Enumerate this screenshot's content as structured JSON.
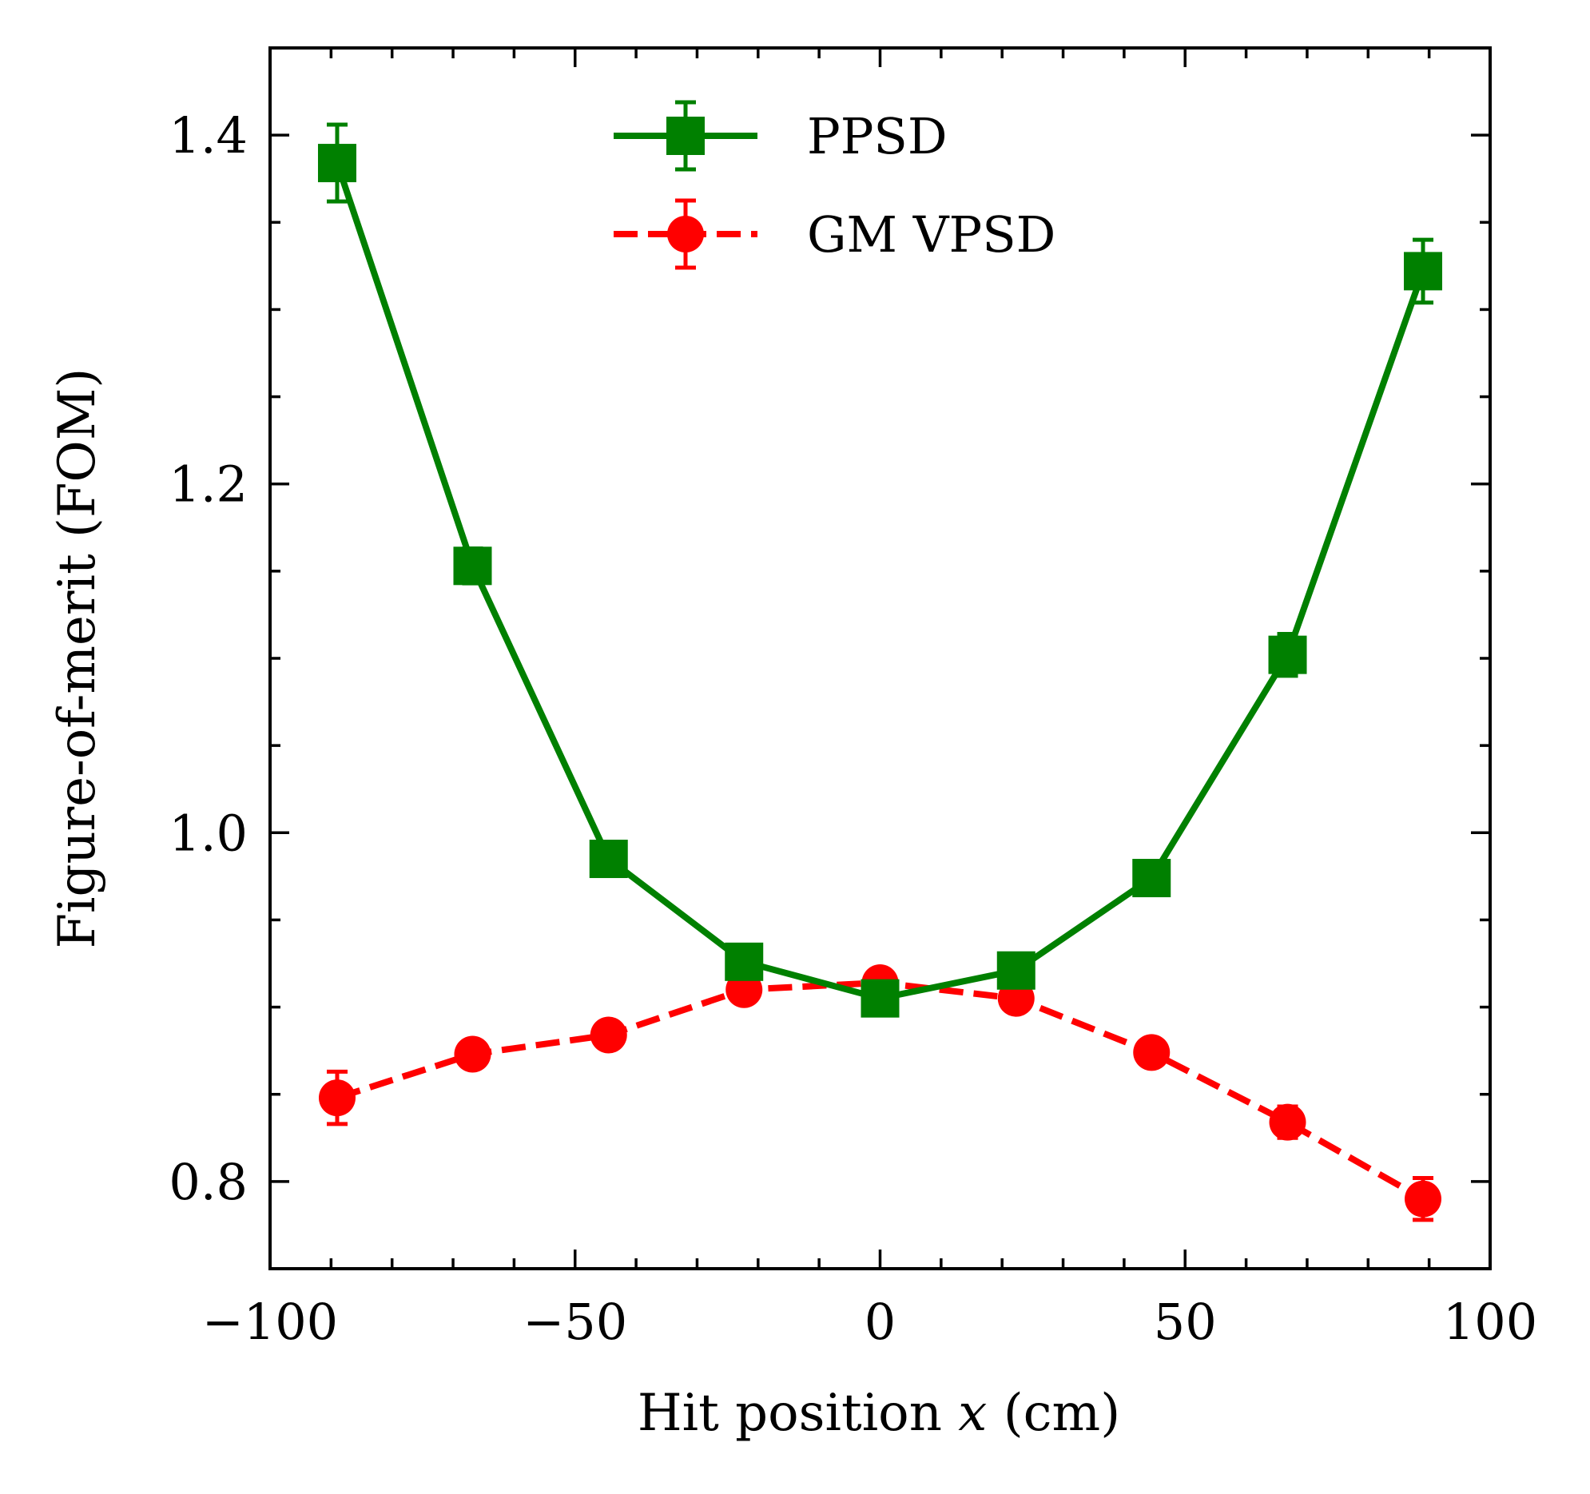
{
  "chart_data": {
    "type": "line",
    "title": "",
    "xlabel": "Hit position x (cm)",
    "xlabel_parts": {
      "before": "Hit position ",
      "var": "x",
      "after": " (cm)"
    },
    "ylabel": "Figure-of-merit (FOM)",
    "xlim": [
      -100,
      100
    ],
    "ylim": [
      0.75,
      1.45
    ],
    "xticks": [
      -100,
      -50,
      0,
      50,
      100
    ],
    "xtick_labels": [
      "−100",
      "−50",
      "0",
      "50",
      "100"
    ],
    "yticks": [
      0.8,
      1.0,
      1.2,
      1.4
    ],
    "ytick_labels": [
      "0.8",
      "1.0",
      "1.2",
      "1.4"
    ],
    "x_minor_step": 10,
    "y_minor_step": 0.05,
    "grid": false,
    "legend_position": "top-center",
    "x": [
      -89,
      -66.8,
      -44.5,
      -22.3,
      0,
      22.3,
      44.5,
      66.8,
      89
    ],
    "series": [
      {
        "name": "PPSD",
        "color": "#008000",
        "line_style": "solid",
        "marker": "square",
        "values": [
          1.384,
          1.153,
          0.985,
          0.926,
          0.905,
          0.921,
          0.974,
          1.102,
          1.322
        ],
        "errors": [
          0.022,
          0.01,
          0.008,
          0.007,
          0.006,
          0.007,
          0.009,
          0.012,
          0.018
        ]
      },
      {
        "name": "GM VPSD",
        "color": "#ff0000",
        "line_style": "dashed",
        "marker": "circle",
        "values": [
          0.848,
          0.873,
          0.884,
          0.91,
          0.914,
          0.905,
          0.874,
          0.834,
          0.79
        ],
        "errors": [
          0.015,
          0.007,
          0.006,
          0.006,
          0.006,
          0.006,
          0.007,
          0.009,
          0.012
        ]
      }
    ]
  }
}
